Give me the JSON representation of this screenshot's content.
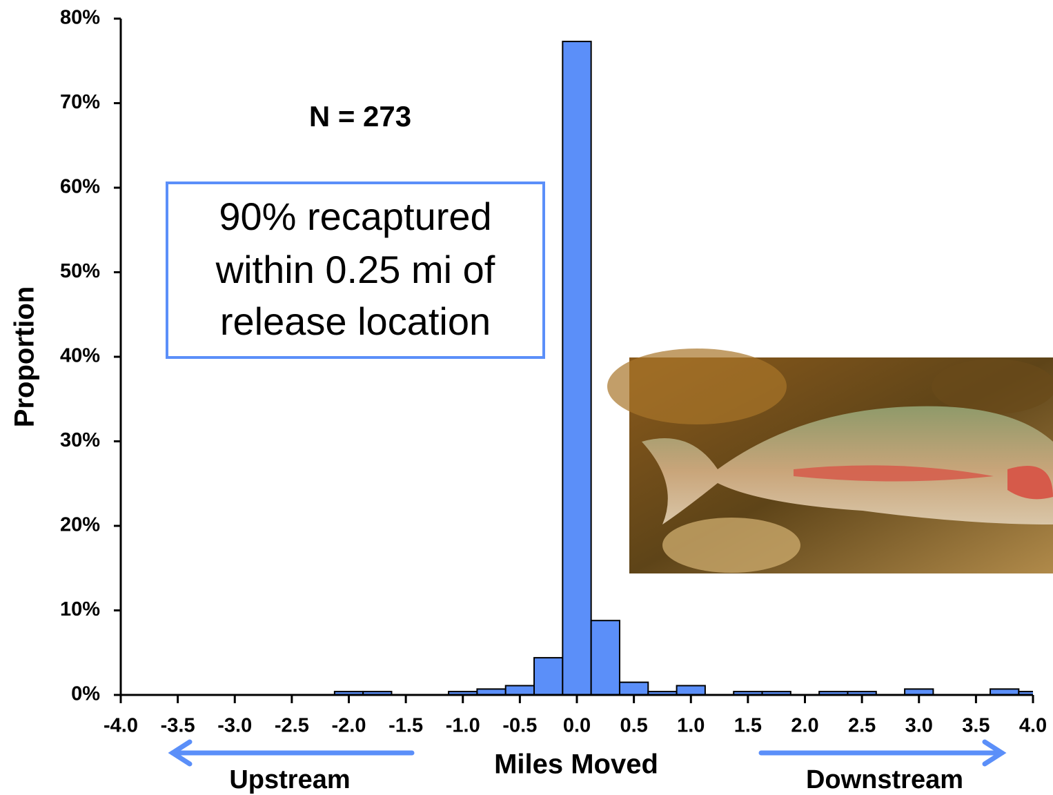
{
  "chart_data": {
    "type": "histogram",
    "x_label": "Miles Moved",
    "y_label": "Proportion",
    "bins": [
      -4.125,
      -3.875,
      -3.625,
      -3.375,
      -3.125,
      -2.875,
      -2.625,
      -2.375,
      -2.125,
      -1.875,
      -1.625,
      -1.375,
      -1.125,
      -0.875,
      -0.625,
      -0.375,
      -0.125,
      0.125,
      0.375,
      0.625,
      0.875,
      1.125,
      1.375,
      1.625,
      1.875,
      2.125,
      2.375,
      2.625,
      2.875,
      3.125,
      3.375,
      3.625,
      3.875,
      4.125
    ],
    "values": [
      0,
      0,
      0,
      0,
      0,
      0,
      0,
      0,
      0.4,
      0.4,
      0,
      0,
      0.4,
      0.7,
      1.1,
      4.4,
      77.3,
      8.8,
      1.5,
      0.4,
      1.1,
      0,
      0.4,
      0.4,
      0,
      0.4,
      0.4,
      0,
      0.7,
      0,
      0,
      0.7,
      0.4
    ],
    "color": "#5b8ff9",
    "xlim": [
      -4,
      4
    ],
    "xticks": [
      {
        "value": -4,
        "label": "-4.0"
      },
      -3.5,
      {
        "value": -3,
        "label": "-3.0"
      },
      -2.5,
      {
        "value": -2,
        "label": "-2.0"
      },
      -1.5,
      {
        "value": -1,
        "label": "-1.0"
      },
      -0.5,
      {
        "value": 0,
        "label": "0.0"
      },
      0.5,
      {
        "value": 1,
        "label": "1.0"
      },
      1.5,
      {
        "value": 2,
        "label": "2.0"
      },
      2.5,
      {
        "value": 3,
        "label": "3.0"
      },
      3.5,
      {
        "value": 4,
        "label": "4.0"
      }
    ],
    "ylim": [
      0,
      80
    ],
    "yticks": [
      {
        "value": 0,
        "label": "0%"
      },
      {
        "value": 10,
        "label": "10%"
      },
      {
        "value": 20,
        "label": "20%"
      },
      {
        "value": 30,
        "label": "30%"
      },
      {
        "value": 40,
        "label": "40%"
      },
      {
        "value": 50,
        "label": "50%"
      },
      {
        "value": 60,
        "label": "60%"
      },
      {
        "value": 70,
        "label": "70%"
      },
      {
        "value": 80,
        "label": "80%"
      }
    ],
    "annotations": {
      "sample_size": "N = 273",
      "box_lines": [
        "90% recaptured",
        "within 0.25 mi of",
        "release location"
      ],
      "upstream": "Upstream",
      "downstream": "Downstream"
    }
  }
}
